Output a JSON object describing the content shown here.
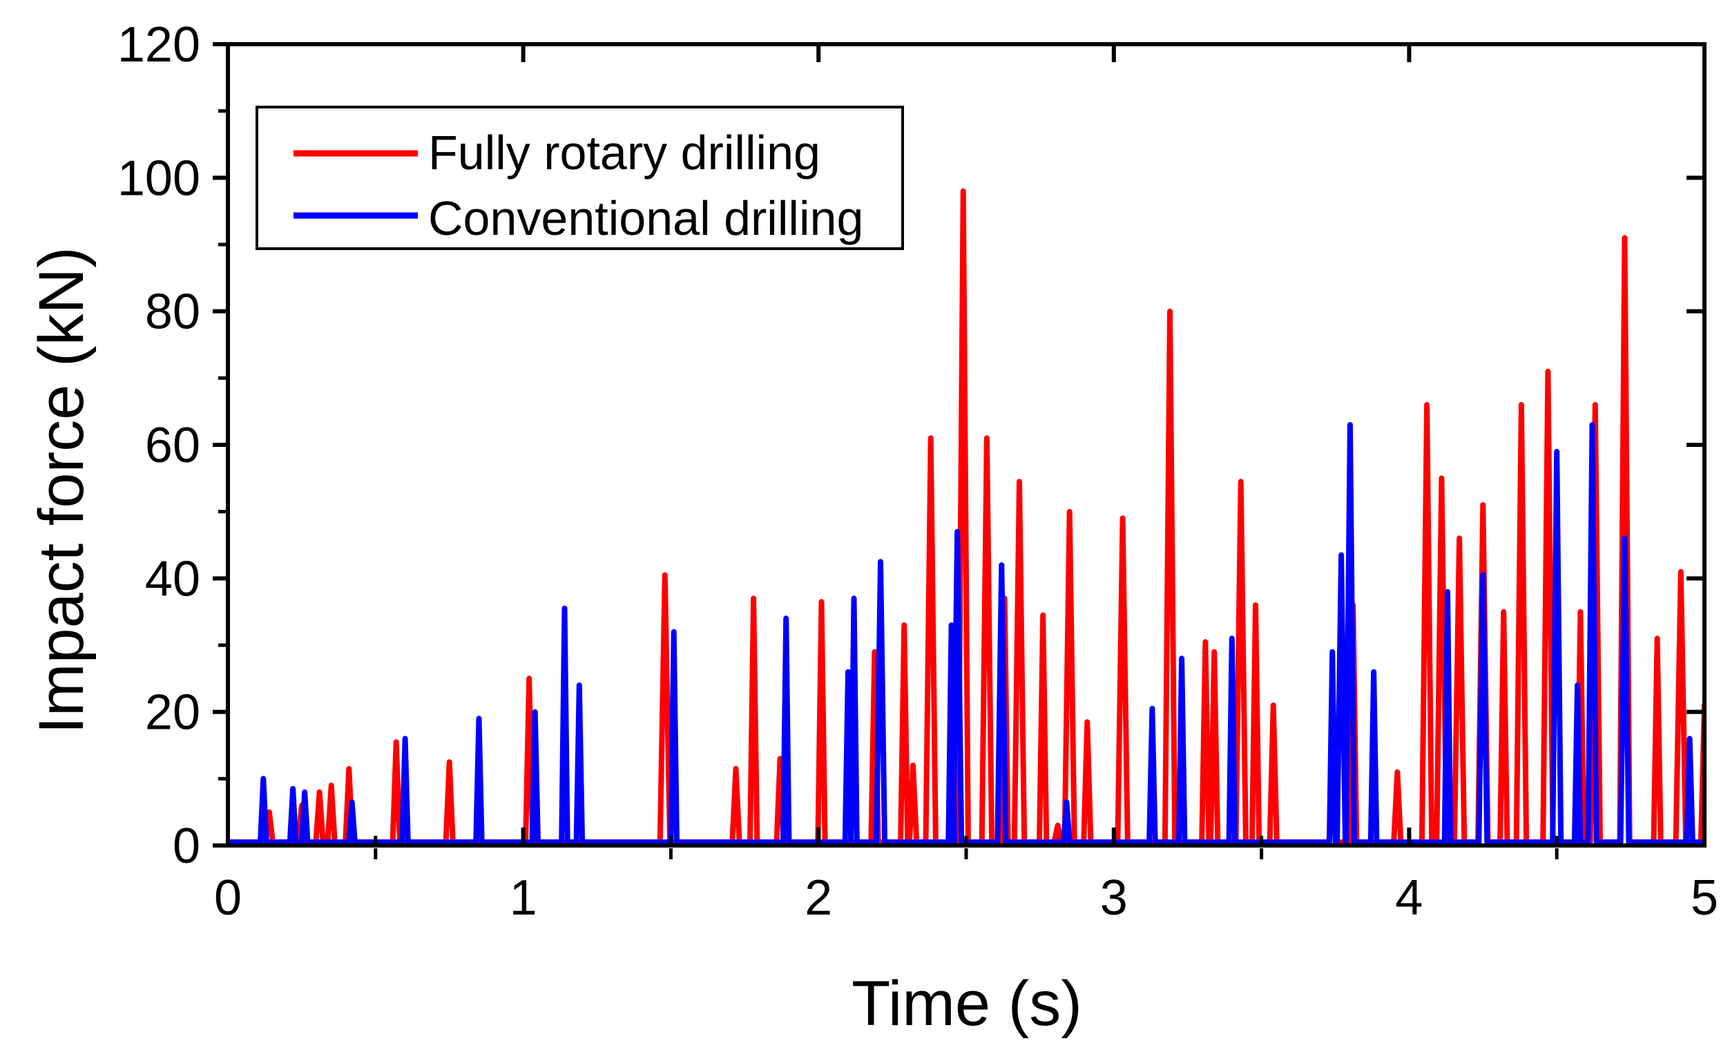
{
  "chart_data": {
    "type": "line",
    "title": "",
    "xlabel": "Time (s)",
    "ylabel": "Impact force (kN)",
    "xlim": [
      0,
      5
    ],
    "ylim": [
      0,
      120
    ],
    "x_ticks": [
      0,
      1,
      2,
      3,
      4,
      5
    ],
    "x_tick_labels": [
      "0",
      "1",
      "2",
      "3",
      "4",
      "5"
    ],
    "y_ticks": [
      0,
      20,
      40,
      60,
      80,
      100,
      120
    ],
    "y_tick_labels": [
      "0",
      "20",
      "40",
      "60",
      "80",
      "100",
      "120"
    ],
    "grid": false,
    "legend_position": "top-left",
    "baseline": 0.5,
    "series": [
      {
        "name": "Fully rotary drilling",
        "color": "#ff0000",
        "peaks": [
          [
            0.14,
            5
          ],
          [
            0.25,
            6
          ],
          [
            0.31,
            8
          ],
          [
            0.35,
            9
          ],
          [
            0.41,
            11.5
          ],
          [
            0.57,
            15.5
          ],
          [
            0.75,
            12.5
          ],
          [
            1.02,
            25
          ],
          [
            1.48,
            40.5
          ],
          [
            1.72,
            11.5
          ],
          [
            1.78,
            37
          ],
          [
            1.87,
            13
          ],
          [
            2.01,
            36.5
          ],
          [
            2.19,
            29
          ],
          [
            2.29,
            33
          ],
          [
            2.32,
            12
          ],
          [
            2.38,
            61
          ],
          [
            2.49,
            98
          ],
          [
            2.57,
            61
          ],
          [
            2.63,
            37
          ],
          [
            2.68,
            54.5
          ],
          [
            2.76,
            34.5
          ],
          [
            2.81,
            3
          ],
          [
            2.85,
            50
          ],
          [
            2.91,
            18.5
          ],
          [
            3.03,
            49
          ],
          [
            3.19,
            80
          ],
          [
            3.31,
            30.5
          ],
          [
            3.34,
            29
          ],
          [
            3.43,
            54.5
          ],
          [
            3.48,
            36
          ],
          [
            3.54,
            21
          ],
          [
            3.74,
            6
          ],
          [
            3.81,
            36
          ],
          [
            3.96,
            11
          ],
          [
            4.06,
            66
          ],
          [
            4.11,
            55
          ],
          [
            4.17,
            46
          ],
          [
            4.25,
            51
          ],
          [
            4.32,
            35
          ],
          [
            4.38,
            66
          ],
          [
            4.47,
            71
          ],
          [
            4.58,
            35
          ],
          [
            4.63,
            66
          ],
          [
            4.73,
            91
          ],
          [
            4.84,
            31
          ],
          [
            4.92,
            41
          ],
          [
            5.0,
            21
          ]
        ]
      },
      {
        "name": "Conventional drilling",
        "color": "#0000ff",
        "peaks": [
          [
            0.12,
            10
          ],
          [
            0.22,
            8.5
          ],
          [
            0.26,
            8
          ],
          [
            0.42,
            6.5
          ],
          [
            0.6,
            16
          ],
          [
            0.85,
            19
          ],
          [
            1.04,
            20
          ],
          [
            1.14,
            35.5
          ],
          [
            1.19,
            24
          ],
          [
            1.51,
            32
          ],
          [
            1.89,
            34
          ],
          [
            2.1,
            26
          ],
          [
            2.12,
            37
          ],
          [
            2.21,
            42.5
          ],
          [
            2.45,
            33
          ],
          [
            2.47,
            47
          ],
          [
            2.62,
            42
          ],
          [
            2.84,
            6.5
          ],
          [
            3.13,
            20.5
          ],
          [
            3.23,
            28
          ],
          [
            3.4,
            31
          ],
          [
            3.74,
            29
          ],
          [
            3.77,
            43.5
          ],
          [
            3.8,
            63
          ],
          [
            3.88,
            26
          ],
          [
            4.13,
            38
          ],
          [
            4.25,
            40.5
          ],
          [
            4.5,
            59
          ],
          [
            4.57,
            24
          ],
          [
            4.62,
            63
          ],
          [
            4.73,
            46
          ],
          [
            4.95,
            16
          ]
        ]
      }
    ]
  }
}
